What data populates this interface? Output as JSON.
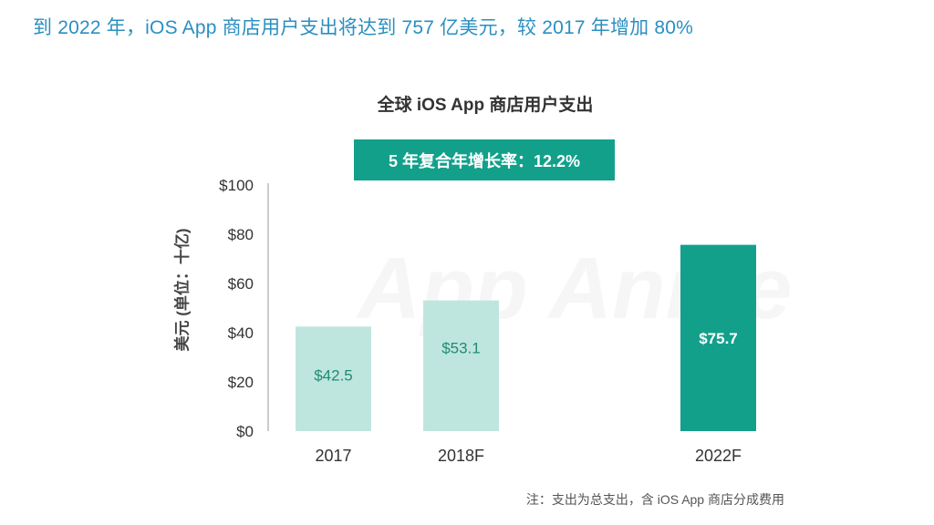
{
  "headline": "到 2022 年，iOS App 商店用户支出将达到 757 亿美元，较 2017 年增加 80%",
  "badge": "5 年复合年增长率：12.2%",
  "footnote": "注：支出为总支出，含 iOS App 商店分成费用",
  "watermark": "App Annie",
  "colors": {
    "headline": "#2a8fc1",
    "bar_light": "#bfe6de",
    "bar_dark": "#12a08b",
    "label_light": "#1f8c74",
    "label_dark": "#ffffff"
  },
  "chart_data": {
    "type": "bar",
    "title": "全球 iOS App 商店用户支出",
    "ylabel": "美元 (单位：十亿)",
    "xlabel": "",
    "categories": [
      "2017",
      "2018F",
      "2022F"
    ],
    "values": [
      42.5,
      53.1,
      75.7
    ],
    "value_labels": [
      "$42.5",
      "$53.1",
      "$75.7"
    ],
    "highlight": [
      false,
      false,
      true
    ],
    "ylim": [
      0,
      100
    ],
    "yticks": [
      0,
      20,
      40,
      60,
      80,
      100
    ],
    "ytick_labels": [
      "$0",
      "$20",
      "$40",
      "$60",
      "$80",
      "$100"
    ],
    "grid": false,
    "legend": "none"
  }
}
